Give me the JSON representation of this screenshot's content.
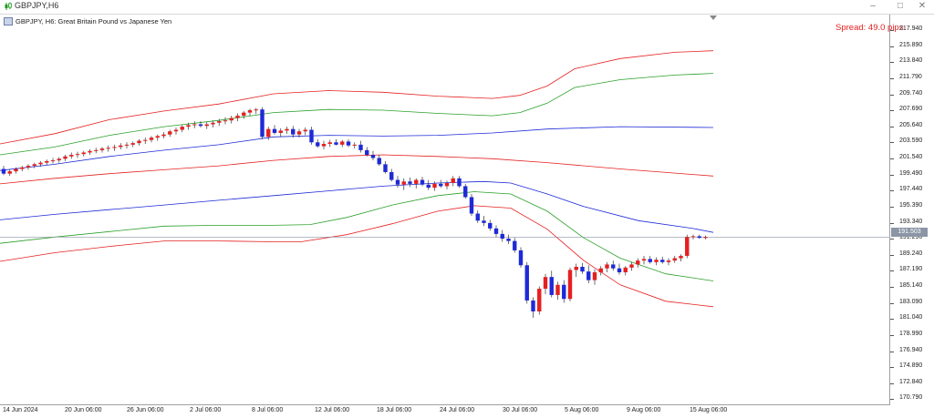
{
  "window": {
    "title": "GBPJPY,H6",
    "buttons": [
      "–",
      "□",
      "✕"
    ]
  },
  "chart": {
    "symbol_label": "GBPJPY, H6:  Great Britain Pound vs Japanese Yen",
    "spread": "Spread: 49.0 pips",
    "current_price": "191.503"
  },
  "colors": {
    "bull": "#e62020",
    "bear": "#1e2ad6",
    "upper_env": "#e62020",
    "mid_env": "#2aa02a",
    "center": "#1e2ad6"
  },
  "chart_data": {
    "type": "candlestick",
    "ylim": [
      169.5,
      219.5
    ],
    "price_ticks": [
      "217.940",
      "215.890",
      "213.840",
      "211.790",
      "209.740",
      "207.690",
      "205.640",
      "203.590",
      "201.540",
      "199.490",
      "197.440",
      "195.390",
      "193.340",
      "191.290",
      "189.240",
      "187.190",
      "185.140",
      "183.090",
      "181.040",
      "178.990",
      "176.940",
      "174.890",
      "172.840",
      "170.790"
    ],
    "time_ticks": [
      "14 Jun 2024",
      "20 Jun 06:00",
      "26 Jun 06:00",
      "2 Jul 06:00",
      "8 Jul 06:00",
      "12 Jul 06:00",
      "18 Jul 06:00",
      "24 Jul 06:00",
      "30 Jul 06:00",
      "5 Aug 06:00",
      "9 Aug 06:00",
      "15 Aug 06:00"
    ],
    "candles": [
      [
        200.2,
        200.6,
        199.4,
        199.6
      ],
      [
        199.6,
        200.1,
        199.3,
        199.9
      ],
      [
        199.9,
        200.4,
        199.6,
        200.2
      ],
      [
        200.2,
        200.6,
        199.9,
        200.4
      ],
      [
        200.4,
        200.8,
        200.1,
        200.6
      ],
      [
        200.6,
        201.0,
        200.3,
        200.8
      ],
      [
        200.8,
        201.2,
        200.5,
        201.0
      ],
      [
        201.0,
        201.4,
        200.7,
        201.2
      ],
      [
        201.2,
        201.6,
        200.9,
        201.3
      ],
      [
        201.3,
        201.7,
        201.0,
        201.5
      ],
      [
        201.5,
        202.0,
        201.2,
        201.8
      ],
      [
        201.8,
        202.3,
        201.5,
        202.0
      ],
      [
        202.0,
        202.4,
        201.6,
        202.1
      ],
      [
        202.1,
        202.5,
        201.8,
        202.3
      ],
      [
        202.3,
        202.7,
        202.0,
        202.5
      ],
      [
        202.5,
        202.9,
        202.2,
        202.6
      ],
      [
        202.6,
        203.0,
        202.3,
        202.8
      ],
      [
        202.8,
        203.2,
        202.4,
        202.9
      ],
      [
        202.9,
        203.3,
        202.5,
        203.0
      ],
      [
        203.0,
        203.5,
        202.7,
        203.2
      ],
      [
        203.2,
        203.6,
        202.8,
        203.3
      ],
      [
        203.3,
        203.7,
        203.0,
        203.5
      ],
      [
        203.5,
        204.0,
        203.2,
        203.8
      ],
      [
        203.8,
        204.2,
        203.4,
        203.9
      ],
      [
        203.9,
        204.4,
        203.6,
        204.2
      ],
      [
        204.2,
        204.6,
        203.8,
        204.4
      ],
      [
        204.4,
        204.9,
        204.1,
        204.6
      ],
      [
        204.6,
        205.2,
        204.3,
        205.0
      ],
      [
        205.0,
        205.5,
        204.6,
        205.2
      ],
      [
        205.2,
        205.8,
        204.9,
        205.6
      ],
      [
        205.6,
        206.1,
        205.2,
        205.8
      ],
      [
        205.8,
        206.3,
        205.4,
        205.9
      ],
      [
        205.9,
        206.3,
        205.5,
        205.7
      ],
      [
        205.7,
        206.2,
        205.3,
        205.9
      ],
      [
        205.9,
        206.4,
        205.5,
        206.1
      ],
      [
        206.1,
        206.6,
        205.7,
        206.3
      ],
      [
        206.3,
        206.8,
        205.9,
        206.4
      ],
      [
        206.4,
        207.0,
        206.0,
        206.7
      ],
      [
        206.7,
        207.3,
        206.3,
        207.0
      ],
      [
        207.0,
        207.6,
        206.6,
        207.4
      ],
      [
        207.4,
        207.9,
        207.0,
        207.7
      ],
      [
        207.7,
        208.0,
        207.2,
        207.8
      ],
      [
        207.8,
        208.1,
        204.0,
        204.3
      ],
      [
        204.3,
        205.6,
        203.9,
        205.3
      ],
      [
        205.3,
        205.8,
        204.6,
        204.8
      ],
      [
        204.8,
        205.4,
        204.3,
        205.1
      ],
      [
        205.1,
        205.6,
        204.7,
        205.3
      ],
      [
        205.3,
        205.7,
        204.2,
        204.6
      ],
      [
        204.6,
        205.3,
        204.2,
        205.0
      ],
      [
        205.0,
        205.5,
        204.5,
        205.2
      ],
      [
        205.2,
        205.6,
        203.3,
        203.6
      ],
      [
        203.6,
        204.0,
        202.9,
        203.1
      ],
      [
        203.1,
        203.8,
        202.7,
        203.4
      ],
      [
        203.4,
        203.9,
        203.0,
        203.6
      ],
      [
        203.6,
        204.0,
        203.2,
        203.3
      ],
      [
        203.3,
        203.9,
        203.0,
        203.7
      ],
      [
        203.7,
        204.0,
        203.0,
        203.2
      ],
      [
        203.2,
        203.6,
        202.8,
        203.3
      ],
      [
        203.3,
        203.8,
        202.3,
        202.6
      ],
      [
        202.6,
        203.0,
        201.8,
        202.0
      ],
      [
        202.0,
        202.5,
        201.3,
        201.6
      ],
      [
        201.6,
        202.0,
        200.6,
        200.8
      ],
      [
        200.8,
        201.2,
        199.6,
        199.8
      ],
      [
        199.8,
        200.2,
        198.6,
        198.8
      ],
      [
        198.8,
        199.3,
        197.8,
        198.2
      ],
      [
        198.2,
        199.0,
        197.5,
        198.6
      ],
      [
        198.6,
        199.1,
        197.9,
        198.3
      ],
      [
        198.3,
        199.0,
        197.7,
        198.8
      ],
      [
        198.8,
        199.2,
        198.0,
        198.2
      ],
      [
        198.2,
        198.8,
        197.5,
        197.8
      ],
      [
        197.8,
        198.6,
        197.4,
        198.3
      ],
      [
        198.3,
        198.8,
        197.8,
        198.0
      ],
      [
        198.0,
        198.7,
        197.6,
        198.4
      ],
      [
        198.4,
        199.3,
        198.0,
        199.0
      ],
      [
        199.0,
        199.3,
        197.8,
        198.0
      ],
      [
        198.0,
        198.3,
        196.4,
        196.6
      ],
      [
        196.6,
        197.0,
        194.2,
        194.5
      ],
      [
        194.5,
        194.9,
        193.3,
        193.6
      ],
      [
        193.6,
        194.2,
        192.9,
        193.3
      ],
      [
        193.3,
        193.7,
        192.3,
        192.6
      ],
      [
        192.6,
        193.0,
        191.5,
        191.9
      ],
      [
        191.9,
        192.4,
        190.9,
        191.3
      ],
      [
        191.3,
        191.8,
        190.6,
        191.0
      ],
      [
        191.0,
        191.4,
        189.5,
        189.8
      ],
      [
        189.8,
        190.2,
        187.6,
        187.9
      ],
      [
        187.9,
        188.3,
        183.0,
        183.4
      ],
      [
        183.4,
        183.8,
        181.2,
        182.0
      ],
      [
        182.0,
        185.2,
        181.6,
        184.9
      ],
      [
        184.9,
        186.8,
        184.2,
        186.4
      ],
      [
        186.4,
        187.2,
        183.8,
        184.1
      ],
      [
        184.1,
        185.8,
        183.5,
        185.4
      ],
      [
        185.4,
        186.0,
        183.1,
        183.6
      ],
      [
        183.6,
        187.6,
        183.3,
        187.3
      ],
      [
        187.3,
        188.1,
        186.4,
        187.7
      ],
      [
        187.7,
        188.2,
        186.8,
        187.1
      ],
      [
        187.1,
        187.9,
        185.6,
        186.0
      ],
      [
        186.0,
        187.4,
        185.4,
        187.0
      ],
      [
        187.0,
        187.8,
        186.6,
        187.5
      ],
      [
        187.5,
        188.3,
        187.0,
        188.0
      ],
      [
        188.0,
        188.5,
        187.2,
        187.5
      ],
      [
        187.5,
        188.1,
        186.7,
        187.0
      ],
      [
        187.0,
        187.8,
        186.6,
        187.6
      ],
      [
        187.6,
        188.3,
        187.2,
        188.0
      ],
      [
        188.0,
        188.8,
        187.6,
        188.5
      ],
      [
        188.5,
        189.1,
        188.0,
        188.7
      ],
      [
        188.7,
        189.1,
        188.1,
        188.3
      ],
      [
        188.3,
        188.9,
        187.9,
        188.6
      ],
      [
        188.6,
        189.0,
        188.1,
        188.3
      ],
      [
        188.3,
        188.8,
        187.9,
        188.5
      ],
      [
        188.5,
        189.1,
        188.2,
        188.8
      ],
      [
        188.8,
        189.3,
        188.4,
        189.1
      ],
      [
        189.1,
        191.8,
        188.8,
        191.5
      ],
      [
        191.5,
        191.8,
        191.2,
        191.6
      ],
      [
        191.6,
        191.8,
        191.3,
        191.4
      ],
      [
        191.4,
        191.7,
        191.2,
        191.5
      ]
    ],
    "upper_outer": [
      [
        0,
        203.4
      ],
      [
        60,
        204.7
      ],
      [
        120,
        206.5
      ],
      [
        180,
        207.6
      ],
      [
        240,
        208.5
      ],
      [
        300,
        209.8
      ],
      [
        360,
        210.2
      ],
      [
        420,
        210.0
      ],
      [
        480,
        209.5
      ],
      [
        540,
        209.2
      ],
      [
        570,
        209.6
      ],
      [
        600,
        210.8
      ],
      [
        630,
        213.0
      ],
      [
        680,
        214.3
      ],
      [
        740,
        215.1
      ],
      [
        782,
        215.3
      ]
    ],
    "upper_inner": [
      [
        0,
        202.0
      ],
      [
        60,
        203.0
      ],
      [
        120,
        204.5
      ],
      [
        180,
        205.6
      ],
      [
        240,
        206.4
      ],
      [
        300,
        207.4
      ],
      [
        360,
        207.8
      ],
      [
        420,
        207.7
      ],
      [
        480,
        207.3
      ],
      [
        540,
        207.0
      ],
      [
        570,
        207.4
      ],
      [
        600,
        208.6
      ],
      [
        630,
        210.6
      ],
      [
        680,
        211.6
      ],
      [
        740,
        212.2
      ],
      [
        782,
        212.4
      ]
    ],
    "center_upper": [
      [
        0,
        200.0
      ],
      [
        60,
        200.8
      ],
      [
        120,
        201.8
      ],
      [
        180,
        202.6
      ],
      [
        240,
        203.3
      ],
      [
        300,
        204.3
      ],
      [
        360,
        204.5
      ],
      [
        420,
        204.4
      ],
      [
        480,
        204.5
      ],
      [
        540,
        204.8
      ],
      [
        600,
        205.3
      ],
      [
        680,
        205.6
      ],
      [
        782,
        205.5
      ]
    ],
    "center_lower": [
      [
        0,
        198.3
      ],
      [
        60,
        199.0
      ],
      [
        120,
        199.6
      ],
      [
        180,
        200.1
      ],
      [
        240,
        200.6
      ],
      [
        300,
        201.3
      ],
      [
        360,
        201.8
      ],
      [
        420,
        202.0
      ],
      [
        480,
        201.8
      ],
      [
        540,
        201.5
      ],
      [
        600,
        201.0
      ],
      [
        680,
        200.2
      ],
      [
        782,
        199.3
      ]
    ],
    "mid_blue": [
      [
        0,
        193.7
      ],
      [
        60,
        194.4
      ],
      [
        120,
        195.0
      ],
      [
        180,
        195.6
      ],
      [
        240,
        196.2
      ],
      [
        300,
        196.8
      ],
      [
        360,
        197.4
      ],
      [
        420,
        198.0
      ],
      [
        480,
        198.4
      ],
      [
        530,
        198.6
      ],
      [
        560,
        198.4
      ],
      [
        600,
        197.0
      ],
      [
        640,
        195.4
      ],
      [
        700,
        193.6
      ],
      [
        760,
        192.6
      ],
      [
        782,
        192.1
      ]
    ],
    "lower_inner": [
      [
        0,
        190.7
      ],
      [
        60,
        191.5
      ],
      [
        120,
        192.2
      ],
      [
        180,
        192.9
      ],
      [
        240,
        193.0
      ],
      [
        300,
        193.0
      ],
      [
        340,
        193.1
      ],
      [
        380,
        194.0
      ],
      [
        430,
        195.6
      ],
      [
        480,
        196.8
      ],
      [
        520,
        197.3
      ],
      [
        560,
        197.0
      ],
      [
        600,
        194.8
      ],
      [
        640,
        191.4
      ],
      [
        680,
        188.8
      ],
      [
        730,
        186.8
      ],
      [
        782,
        185.9
      ]
    ],
    "lower_outer": [
      [
        0,
        188.4
      ],
      [
        60,
        189.5
      ],
      [
        120,
        190.3
      ],
      [
        180,
        191.0
      ],
      [
        240,
        191.0
      ],
      [
        300,
        190.9
      ],
      [
        330,
        190.9
      ],
      [
        380,
        191.8
      ],
      [
        430,
        193.2
      ],
      [
        480,
        194.8
      ],
      [
        520,
        195.5
      ],
      [
        560,
        195.2
      ],
      [
        600,
        192.5
      ],
      [
        640,
        188.5
      ],
      [
        680,
        185.4
      ],
      [
        730,
        183.3
      ],
      [
        782,
        182.6
      ]
    ]
  }
}
